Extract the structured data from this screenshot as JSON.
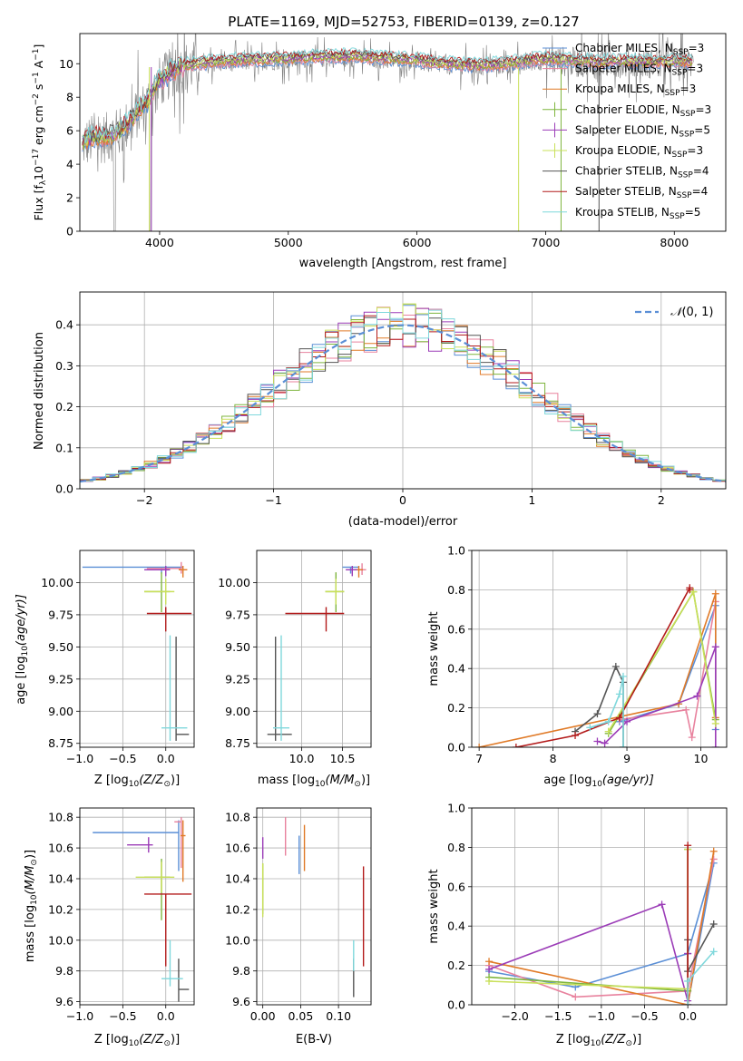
{
  "figure": {
    "title": "PLATE=1169, MJD=52753, FIBERID=0139, z=0.127"
  },
  "models": [
    {
      "label": "Chabrier MILES, N",
      "sub": "SSP",
      "eq": "=3",
      "color": "#5b8fd6"
    },
    {
      "label": "Salpeter MILES, N",
      "sub": "SSP",
      "eq": "=3",
      "color": "#e8829e"
    },
    {
      "label": "Kroupa MILES, N",
      "sub": "SSP",
      "eq": "=3",
      "color": "#e07a27"
    },
    {
      "label": "Chabrier ELODIE, N",
      "sub": "SSP",
      "eq": "=3",
      "color": "#7fb53e"
    },
    {
      "label": "Salpeter ELODIE, N",
      "sub": "SSP",
      "eq": "=5",
      "color": "#9b3cb7"
    },
    {
      "label": "Kroupa ELODIE, N",
      "sub": "SSP",
      "eq": "=3",
      "color": "#c9e05a"
    },
    {
      "label": "Chabrier STELIB, N",
      "sub": "SSP",
      "eq": "=4",
      "color": "#555555"
    },
    {
      "label": "Salpeter STELIB, N",
      "sub": "SSP",
      "eq": "=4",
      "color": "#b31b1b"
    },
    {
      "label": "Kroupa STELIB, N",
      "sub": "SSP",
      "eq": "=5",
      "color": "#7fd8dc"
    }
  ],
  "chart_data": [
    {
      "id": "spectrum",
      "type": "line",
      "title": "PLATE=1169, MJD=52753, FIBERID=0139, z=0.127",
      "xlabel": "wavelength [Angstrom, rest frame]",
      "ylabel_pre": "Flux [f",
      "ylabel_mid": "10",
      "ylabel_post": " erg cm",
      "ylabel_units": " s",
      "ylabel_end": " A",
      "xlim": [
        3380,
        8400
      ],
      "ylim": [
        0,
        11.8
      ],
      "xticks": [
        4000,
        5000,
        6000,
        7000,
        8000
      ],
      "yticks": [
        0,
        2,
        4,
        6,
        8,
        10
      ],
      "data_color": "#808080",
      "grid": false,
      "legend": "right",
      "continuum": {
        "x": [
          3400,
          3500,
          3600,
          3700,
          3800,
          3900,
          4000,
          4100,
          4200,
          4400,
          4600,
          4800,
          5000,
          5200,
          5500,
          5800,
          6000,
          6200,
          6500,
          6800,
          7000,
          7200,
          7400,
          7600,
          7800,
          8000,
          8150
        ],
        "y": [
          5.2,
          5.5,
          5.6,
          5.9,
          6.8,
          7.6,
          8.9,
          9.5,
          9.8,
          10.0,
          10.1,
          10.15,
          10.2,
          10.3,
          10.35,
          10.2,
          10.1,
          9.9,
          9.8,
          10.0,
          10.2,
          10.1,
          10.0,
          10.05,
          10.0,
          10.05,
          10.0
        ]
      }
    },
    {
      "id": "residuals",
      "type": "step",
      "xlabel": "(data-model)/error",
      "ylabel": "Normed distribution",
      "xlim": [
        -2.5,
        2.5
      ],
      "ylim": [
        0,
        0.48
      ],
      "xticks": [
        -2,
        -1,
        0,
        1,
        2
      ],
      "yticks": [
        0.0,
        0.1,
        0.2,
        0.3,
        0.4
      ],
      "grid": true,
      "legend": "top-right",
      "normal_label": "(0, 1)",
      "normal_color": "#5b8fd6",
      "bin_width": 0.1
    },
    {
      "id": "age_vs_Z",
      "type": "errorbar",
      "xlabel_pre": "Z [log",
      "xlabel_post": "(Z/Z",
      "ylabel_pre": "age  [log",
      "ylabel_post": "(age/yr)]",
      "xlim": [
        -1.0,
        0.33
      ],
      "ylim": [
        8.72,
        10.25
      ],
      "xticks": [
        -1.0,
        -0.5,
        0.0
      ],
      "yticks": [
        8.75,
        9.0,
        9.25,
        9.5,
        9.75,
        10.0
      ],
      "grid": true,
      "points": [
        {
          "x": -0.05,
          "y": 10.12,
          "xerr": [
            0.92,
            0.25
          ],
          "yerr": [
            0.05,
            0.0
          ]
        },
        {
          "x": 0.18,
          "y": 10.11,
          "xerr": [
            0.4,
            0.0
          ],
          "yerr": [
            0.04,
            0.05
          ]
        },
        {
          "x": 0.2,
          "y": 10.1,
          "xerr": [
            0.05,
            0.05
          ],
          "yerr": [
            0.06,
            0.03
          ]
        },
        {
          "x": -0.05,
          "y": 9.93,
          "xerr": [
            0.2,
            0.1
          ],
          "yerr": [
            0.16,
            0.15
          ]
        },
        {
          "x": 0.0,
          "y": 10.1,
          "xerr": [
            0.25,
            0.05
          ],
          "yerr": [
            0.05,
            0.03
          ]
        },
        {
          "x": 0.0,
          "y": 9.93,
          "xerr": [
            0.25,
            0.1
          ],
          "yerr": [
            0.1,
            0.1
          ]
        },
        {
          "x": 0.12,
          "y": 8.82,
          "xerr": [
            0.0,
            0.15
          ],
          "yerr": [
            0.05,
            0.76
          ]
        },
        {
          "x": 0.0,
          "y": 9.76,
          "xerr": [
            0.22,
            0.3
          ],
          "yerr": [
            0.14,
            0.05
          ]
        },
        {
          "x": 0.05,
          "y": 8.87,
          "xerr": [
            0.1,
            0.2
          ],
          "yerr": [
            0.1,
            0.72
          ]
        }
      ]
    },
    {
      "id": "age_vs_mass",
      "type": "errorbar",
      "xlabel_pre": "mass [log",
      "xlabel_post": "(M/M",
      "xlim": [
        9.45,
        10.85
      ],
      "ylim": [
        8.72,
        10.25
      ],
      "xticks": [
        10.0,
        10.5
      ],
      "yticks": [
        8.75,
        9.0,
        9.25,
        9.5,
        9.75,
        10.0
      ],
      "grid": true,
      "points": [
        {
          "x": 10.6,
          "y": 10.12,
          "xerr": [
            0.1,
            0.1
          ],
          "yerr": [
            0.05,
            0.0
          ]
        },
        {
          "x": 10.74,
          "y": 10.1,
          "xerr": [
            0.05,
            0.05
          ],
          "yerr": [
            0.04,
            0.05
          ]
        },
        {
          "x": 10.7,
          "y": 10.1,
          "xerr": [
            0.05,
            0.05
          ],
          "yerr": [
            0.06,
            0.03
          ]
        },
        {
          "x": 10.42,
          "y": 9.93,
          "xerr": [
            0.13,
            0.1
          ],
          "yerr": [
            0.16,
            0.15
          ]
        },
        {
          "x": 10.62,
          "y": 10.1,
          "xerr": [
            0.08,
            0.06
          ],
          "yerr": [
            0.05,
            0.03
          ]
        },
        {
          "x": 10.42,
          "y": 9.93,
          "xerr": [
            0.13,
            0.1
          ],
          "yerr": [
            0.1,
            0.1
          ]
        },
        {
          "x": 9.68,
          "y": 8.82,
          "xerr": [
            0.1,
            0.2
          ],
          "yerr": [
            0.05,
            0.76
          ]
        },
        {
          "x": 10.3,
          "y": 9.76,
          "xerr": [
            0.5,
            0.22
          ],
          "yerr": [
            0.14,
            0.05
          ]
        },
        {
          "x": 9.75,
          "y": 8.87,
          "xerr": [
            0.1,
            0.1
          ],
          "yerr": [
            0.1,
            0.72
          ]
        }
      ]
    },
    {
      "id": "weight_vs_age",
      "type": "line",
      "xlabel_pre": "age  [log",
      "xlabel_post": "(age/yr)]",
      "ylabel": "mass weight",
      "xlim": [
        6.9,
        10.35
      ],
      "ylim": [
        0.0,
        1.0
      ],
      "xticks": [
        7,
        8,
        9,
        10
      ],
      "yticks": [
        0.0,
        0.2,
        0.4,
        0.6,
        0.8,
        1.0
      ],
      "grid": true,
      "series": [
        {
          "x": [
            8.9,
            9.7,
            10.2,
            10.2
          ],
          "y": [
            0.13,
            0.22,
            0.72,
            0.09
          ]
        },
        {
          "x": [
            8.9,
            9.8,
            9.88,
            10.2
          ],
          "y": [
            0.14,
            0.19,
            0.05,
            0.74
          ]
        },
        {
          "x": [
            7.0,
            9.7,
            10.2,
            10.2
          ],
          "y": [
            0.0,
            0.22,
            0.78,
            0.15
          ]
        },
        {
          "x": [
            8.75,
            9.9,
            10.2
          ],
          "y": [
            0.07,
            0.79,
            0.14
          ]
        },
        {
          "x": [
            8.6,
            8.7,
            9.0,
            9.95,
            10.2,
            10.2
          ],
          "y": [
            0.03,
            0.02,
            0.13,
            0.26,
            0.51,
            0.0
          ]
        },
        {
          "x": [
            8.75,
            9.9,
            10.2
          ],
          "y": [
            0.08,
            0.79,
            0.12
          ]
        },
        {
          "x": [
            8.3,
            8.6,
            8.85,
            8.95,
            8.95
          ],
          "y": [
            0.08,
            0.17,
            0.41,
            0.33,
            0.0
          ]
        },
        {
          "x": [
            7.5,
            8.3,
            8.9,
            9.85,
            9.85
          ],
          "y": [
            0.0,
            0.06,
            0.15,
            0.81,
            0.8
          ]
        },
        {
          "x": [
            8.5,
            8.75,
            8.9,
            8.95,
            8.95
          ],
          "y": [
            0.1,
            0.13,
            0.27,
            0.36,
            0.0
          ]
        }
      ]
    },
    {
      "id": "mass_vs_Z",
      "type": "errorbar",
      "xlabel_pre": "Z [log",
      "xlabel_post": "(Z/Z",
      "ylabel_pre": "mass [log",
      "ylabel_post": "(M/M",
      "xlim": [
        -1.0,
        0.33
      ],
      "ylim": [
        9.58,
        10.86
      ],
      "xticks": [
        -1.0,
        -0.5,
        0.0
      ],
      "yticks": [
        9.6,
        9.8,
        10.0,
        10.2,
        10.4,
        10.6,
        10.8
      ],
      "grid": true,
      "points": [
        {
          "x": 0.15,
          "y": 10.7,
          "xerr": [
            1.0,
            0.0
          ],
          "yerr": [
            0.25,
            0.08
          ]
        },
        {
          "x": 0.18,
          "y": 10.77,
          "xerr": [
            0.08,
            0.0
          ],
          "yerr": [
            0.3,
            0.03
          ]
        },
        {
          "x": 0.2,
          "y": 10.68,
          "xerr": [
            0.03,
            0.03
          ],
          "yerr": [
            0.3,
            0.1
          ]
        },
        {
          "x": -0.05,
          "y": 10.41,
          "xerr": [
            0.2,
            0.1
          ],
          "yerr": [
            0.28,
            0.12
          ]
        },
        {
          "x": -0.2,
          "y": 10.62,
          "xerr": [
            0.25,
            0.05
          ],
          "yerr": [
            0.05,
            0.05
          ]
        },
        {
          "x": -0.05,
          "y": 10.41,
          "xerr": [
            0.3,
            0.15
          ],
          "yerr": [
            0.1,
            0.1
          ]
        },
        {
          "x": 0.15,
          "y": 9.68,
          "xerr": [
            0.0,
            0.12
          ],
          "yerr": [
            0.08,
            0.2
          ]
        },
        {
          "x": 0.0,
          "y": 10.3,
          "xerr": [
            0.25,
            0.3
          ],
          "yerr": [
            0.47,
            0.0
          ]
        },
        {
          "x": 0.05,
          "y": 9.75,
          "xerr": [
            0.1,
            0.15
          ],
          "yerr": [
            0.05,
            0.25
          ]
        }
      ]
    },
    {
      "id": "mass_vs_ebv",
      "type": "errorbar",
      "xlabel": "E(B-V)",
      "xlim": [
        -0.008,
        0.143
      ],
      "ylim": [
        9.58,
        10.86
      ],
      "xticks": [
        0.0,
        0.05,
        0.1
      ],
      "yticks": [
        9.6,
        9.8,
        10.0,
        10.2,
        10.4,
        10.6,
        10.8
      ],
      "grid": true,
      "points": [
        {
          "x": 0.048,
          "y": 10.6,
          "xerr": [
            0.0,
            0.0
          ],
          "yerr": [
            0.17,
            0.08
          ]
        },
        {
          "x": 0.03,
          "y": 10.65,
          "xerr": [
            0.0,
            0.0
          ],
          "yerr": [
            0.1,
            0.15
          ]
        },
        {
          "x": 0.055,
          "y": 10.6,
          "xerr": [
            0.0,
            0.0
          ],
          "yerr": [
            0.15,
            0.15
          ]
        },
        {
          "x": 0.0,
          "y": 10.35,
          "xerr": [
            0.0,
            0.0
          ],
          "yerr": [
            0.18,
            0.15
          ]
        },
        {
          "x": 0.0,
          "y": 10.6,
          "xerr": [
            0.0,
            0.0
          ],
          "yerr": [
            0.07,
            0.07
          ]
        },
        {
          "x": 0.0,
          "y": 10.3,
          "xerr": [
            0.0,
            0.0
          ],
          "yerr": [
            0.15,
            0.2
          ]
        },
        {
          "x": 0.12,
          "y": 9.78,
          "xerr": [
            0.0,
            0.0
          ],
          "yerr": [
            0.15,
            0.1
          ]
        },
        {
          "x": 0.133,
          "y": 10.15,
          "xerr": [
            0.0,
            0.0
          ],
          "yerr": [
            0.32,
            0.33
          ]
        },
        {
          "x": 0.12,
          "y": 9.9,
          "xerr": [
            0.0,
            0.0
          ],
          "yerr": [
            0.1,
            0.1
          ]
        }
      ]
    },
    {
      "id": "weight_vs_Z",
      "type": "line",
      "xlabel_pre": "Z [log",
      "xlabel_post": "(Z/Z",
      "ylabel": "mass weight",
      "xlim": [
        -2.5,
        0.45
      ],
      "ylim": [
        0.0,
        1.0
      ],
      "xticks": [
        -2.0,
        -1.5,
        -1.0,
        -0.5,
        0.0
      ],
      "yticks": [
        0.0,
        0.2,
        0.4,
        0.6,
        0.8,
        1.0
      ],
      "grid": true,
      "series": [
        {
          "x": [
            -2.3,
            -1.3,
            0.0,
            0.3,
            0.0
          ],
          "y": [
            0.17,
            0.09,
            0.26,
            0.72,
            0.0
          ]
        },
        {
          "x": [
            -2.3,
            -1.3,
            0.0,
            0.3
          ],
          "y": [
            0.2,
            0.04,
            0.07,
            0.74
          ]
        },
        {
          "x": [
            -2.3,
            0.0,
            0.3
          ],
          "y": [
            0.22,
            0.0,
            0.78
          ]
        },
        {
          "x": [
            -2.3,
            0.0,
            0.0
          ],
          "y": [
            0.14,
            0.07,
            0.79
          ]
        },
        {
          "x": [
            -2.3,
            -0.3,
            0.0,
            0.0
          ],
          "y": [
            0.18,
            0.51,
            0.02,
            0.26
          ]
        },
        {
          "x": [
            -2.3,
            0.0,
            0.0
          ],
          "y": [
            0.12,
            0.08,
            0.79
          ]
        },
        {
          "x": [
            0.0,
            0.0,
            0.3
          ],
          "y": [
            0.33,
            0.17,
            0.41
          ]
        },
        {
          "x": [
            0.0,
            0.0
          ],
          "y": [
            0.81,
            0.0
          ]
        },
        {
          "x": [
            0.0,
            0.0,
            0.3
          ],
          "y": [
            0.0,
            0.12,
            0.27
          ]
        }
      ]
    }
  ]
}
